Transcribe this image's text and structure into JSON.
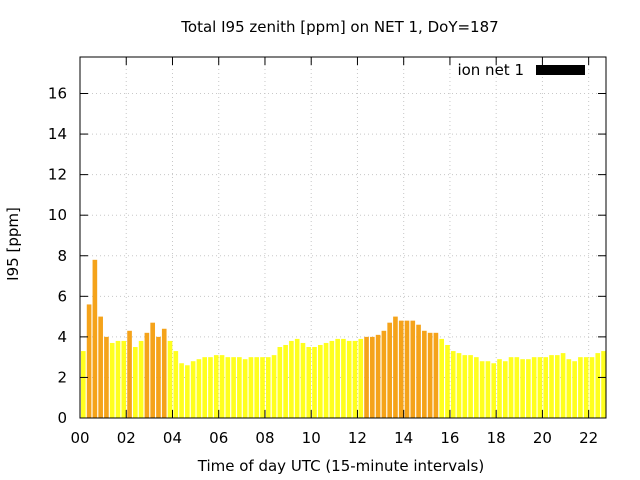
{
  "chart_data": {
    "type": "bar",
    "title": "Total I95 zenith [ppm] on NET 1, DoY=187",
    "xlabel": "Time of day UTC (15-minute intervals)",
    "ylabel": "I95 [ppm]",
    "xlim": [
      0,
      22.75
    ],
    "ylim": [
      0,
      17.8
    ],
    "grid": true,
    "legend": {
      "position": "top-right",
      "entries": [
        {
          "label": "ion net 1",
          "color": "#000000"
        }
      ]
    },
    "x_ticks": [
      "00",
      "02",
      "04",
      "06",
      "08",
      "10",
      "12",
      "14",
      "16",
      "18",
      "20",
      "22"
    ],
    "y_ticks": [
      "0",
      "2",
      "4",
      "6",
      "8",
      "10",
      "12",
      "14",
      "16"
    ],
    "bar_interval_hours": 0.25,
    "colors": {
      "low": "#ffff1e",
      "high": "#f5a31a",
      "axis": "#000000",
      "grid": "#c8c8c8"
    },
    "high_threshold_ppm": 4.0,
    "values": [
      3.3,
      5.6,
      7.8,
      5.0,
      4.0,
      3.7,
      3.8,
      3.8,
      4.3,
      3.5,
      3.8,
      4.2,
      4.7,
      4.0,
      4.4,
      3.8,
      3.3,
      2.7,
      2.6,
      2.8,
      2.9,
      3.0,
      3.0,
      3.1,
      3.1,
      3.0,
      3.0,
      3.0,
      2.9,
      3.0,
      3.0,
      3.0,
      3.0,
      3.1,
      3.5,
      3.6,
      3.8,
      3.9,
      3.7,
      3.5,
      3.5,
      3.6,
      3.7,
      3.8,
      3.9,
      3.9,
      3.8,
      3.8,
      3.9,
      4.0,
      4.0,
      4.1,
      4.3,
      4.7,
      5.0,
      4.8,
      4.8,
      4.8,
      4.6,
      4.3,
      4.2,
      4.2,
      3.9,
      3.6,
      3.3,
      3.2,
      3.1,
      3.1,
      3.0,
      2.8,
      2.8,
      2.7,
      2.9,
      2.8,
      3.0,
      3.0,
      2.9,
      2.9,
      3.0,
      3.0,
      3.0,
      3.1,
      3.1,
      3.2,
      2.9,
      2.8,
      3.0,
      3.0,
      3.0,
      3.2,
      3.3
    ]
  }
}
